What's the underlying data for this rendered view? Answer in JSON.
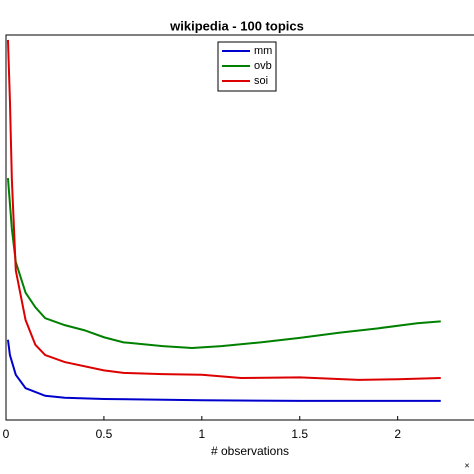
{
  "chart_data": {
    "type": "line",
    "title": "wikipedia - 100 topics",
    "xlabel": "# observations",
    "x_exponent_label": "×",
    "xlim": [
      0,
      2.4
    ],
    "xticks": [
      0,
      0.5,
      1,
      1.5,
      2
    ],
    "ylim": [
      0,
      6
    ],
    "legend": "top-center",
    "series": [
      {
        "name": "mm",
        "color": "#0000cc",
        "x": [
          0.01,
          0.02,
          0.05,
          0.1,
          0.2,
          0.3,
          0.5,
          1,
          1.5,
          2,
          2.22
        ],
        "values": [
          1.26,
          1.02,
          0.71,
          0.5,
          0.38,
          0.35,
          0.33,
          0.31,
          0.3,
          0.3,
          0.3
        ]
      },
      {
        "name": "ovb",
        "color": "#008000",
        "x": [
          0.01,
          0.03,
          0.05,
          0.1,
          0.15,
          0.2,
          0.3,
          0.4,
          0.5,
          0.6,
          0.8,
          0.95,
          1.1,
          1.3,
          1.5,
          1.7,
          1.9,
          2.1,
          2.22
        ],
        "values": [
          3.8,
          3.0,
          2.48,
          2.0,
          1.77,
          1.6,
          1.49,
          1.41,
          1.3,
          1.22,
          1.16,
          1.13,
          1.16,
          1.22,
          1.29,
          1.37,
          1.44,
          1.52,
          1.55
        ]
      },
      {
        "name": "soi",
        "color": "#dd0000",
        "x": [
          0.01,
          0.02,
          0.03,
          0.05,
          0.1,
          0.15,
          0.2,
          0.3,
          0.5,
          0.6,
          0.8,
          1,
          1.2,
          1.5,
          1.8,
          2,
          2.22
        ],
        "values": [
          5.97,
          5.02,
          3.77,
          2.35,
          1.57,
          1.18,
          1.02,
          0.91,
          0.78,
          0.74,
          0.72,
          0.71,
          0.66,
          0.67,
          0.63,
          0.64,
          0.66
        ]
      }
    ]
  }
}
